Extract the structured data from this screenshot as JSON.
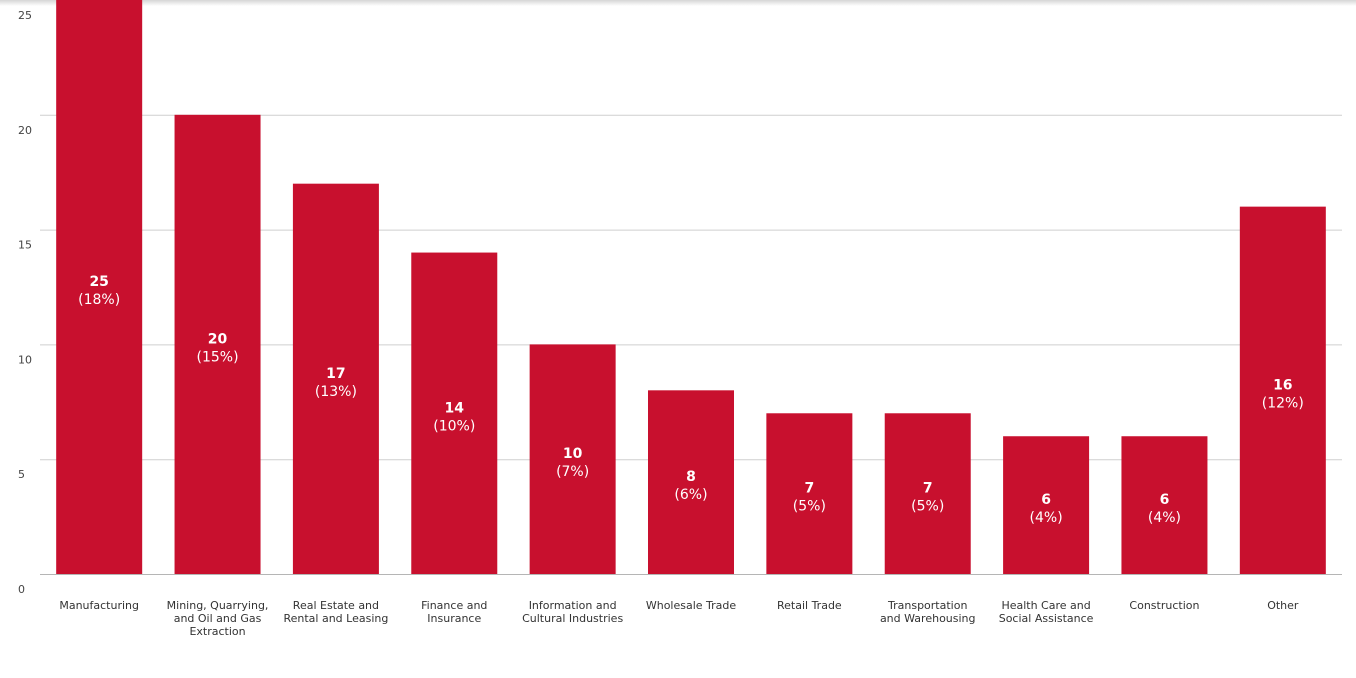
{
  "chart_data": {
    "type": "bar",
    "title": "",
    "xlabel": "",
    "ylabel": "",
    "ylim": [
      0,
      25
    ],
    "yticks": [
      0,
      5,
      10,
      15,
      20,
      25
    ],
    "grid": true,
    "bar_color": "#c8102e",
    "categories": [
      [
        "Manufacturing"
      ],
      [
        "Mining, Quarrying,",
        "and Oil and Gas",
        "Extraction"
      ],
      [
        "Real Estate and",
        "Rental and Leasing"
      ],
      [
        "Finance and",
        "Insurance"
      ],
      [
        "Information and",
        "Cultural Industries"
      ],
      [
        "Wholesale Trade"
      ],
      [
        "Retail Trade"
      ],
      [
        "Transportation",
        "and Warehousing"
      ],
      [
        "Health Care and",
        "Social Assistance"
      ],
      [
        "Construction"
      ],
      [
        "Other"
      ]
    ],
    "values": [
      25,
      20,
      17,
      14,
      10,
      8,
      7,
      7,
      6,
      6,
      16
    ],
    "percent_labels": [
      "(18%)",
      "(15%)",
      "(13%)",
      "(10%)",
      "(7%)",
      "(6%)",
      "(5%)",
      "(5%)",
      "(4%)",
      "(4%)",
      "(12%)"
    ]
  }
}
